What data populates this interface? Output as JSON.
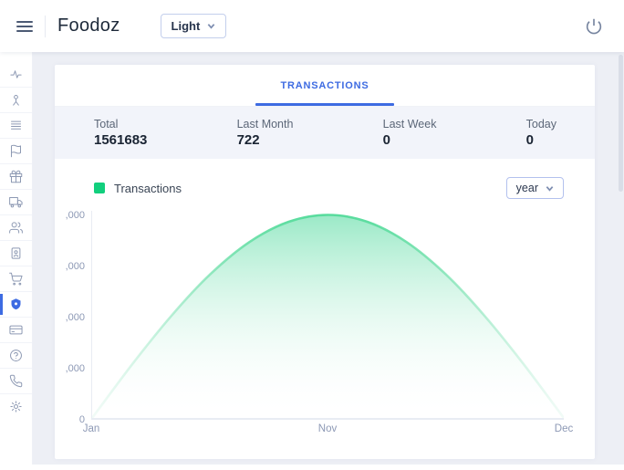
{
  "topbar": {
    "title": "Foodoz",
    "theme_selector": {
      "value": "Light"
    },
    "icons": [
      "menu-icon",
      "chevron-down-icon",
      "power-icon"
    ]
  },
  "sidebar": {
    "active_item": "security-shield",
    "icons": [
      "activity-icon",
      "customer-icon",
      "orders-list-icon",
      "flag-icon",
      "gift-icon",
      "delivery-truck-icon",
      "staff-icon",
      "user-badge-icon",
      "cart-icon",
      "security-shield-icon",
      "payment-card-icon",
      "help-icon",
      "support-call-icon",
      "settings-icon"
    ]
  },
  "tabs": [
    {
      "label": "TRANSACTIONS",
      "active": true
    }
  ],
  "stats": {
    "items": [
      {
        "label": "Total",
        "value": "1561683"
      },
      {
        "label": "Last Month",
        "value": "722"
      },
      {
        "label": "Last Week",
        "value": "0"
      },
      {
        "label": "Today",
        "value": "0"
      }
    ]
  },
  "chart_controls": {
    "range_selector_value": "year"
  },
  "colors": {
    "accent_blue": "#3d6be2",
    "legend_green": "#12cf7d",
    "line_green": "#58dc9d",
    "icon_gray": "#8d99b3",
    "stats_band": "#f2f4fa",
    "page_background": "#edeff5"
  },
  "chart_data": {
    "type": "area",
    "title": "Transactions",
    "legend": [
      {
        "label": "Transactions",
        "color": "#12cf7d"
      }
    ],
    "x_ticks": [
      {
        "pos": 0,
        "label": "Jan"
      },
      {
        "pos": 0.5,
        "label": "Nov"
      },
      {
        "pos": 1,
        "label": "Dec"
      }
    ],
    "y_tick_labels": [
      ",000",
      ",000",
      ",000",
      ",000",
      "0"
    ],
    "y_axis_truncated": true,
    "points": [
      [
        0,
        0
      ],
      [
        0.0833,
        0.254
      ],
      [
        0.1667,
        0.49
      ],
      [
        0.25,
        0.693
      ],
      [
        0.3333,
        0.849
      ],
      [
        0.4167,
        0.947
      ],
      [
        0.5,
        0.98
      ],
      [
        0.5833,
        0.947
      ],
      [
        0.6667,
        0.849
      ],
      [
        0.75,
        0.693
      ],
      [
        0.8333,
        0.49
      ],
      [
        0.9167,
        0.254
      ],
      [
        1,
        0
      ]
    ],
    "line_color": "#58dc9d",
    "fill_top": "rgba(121,226,180,0.75)",
    "fill_bottom": "rgba(255,255,255,0)",
    "grid": false,
    "legend_position": "top-left"
  }
}
